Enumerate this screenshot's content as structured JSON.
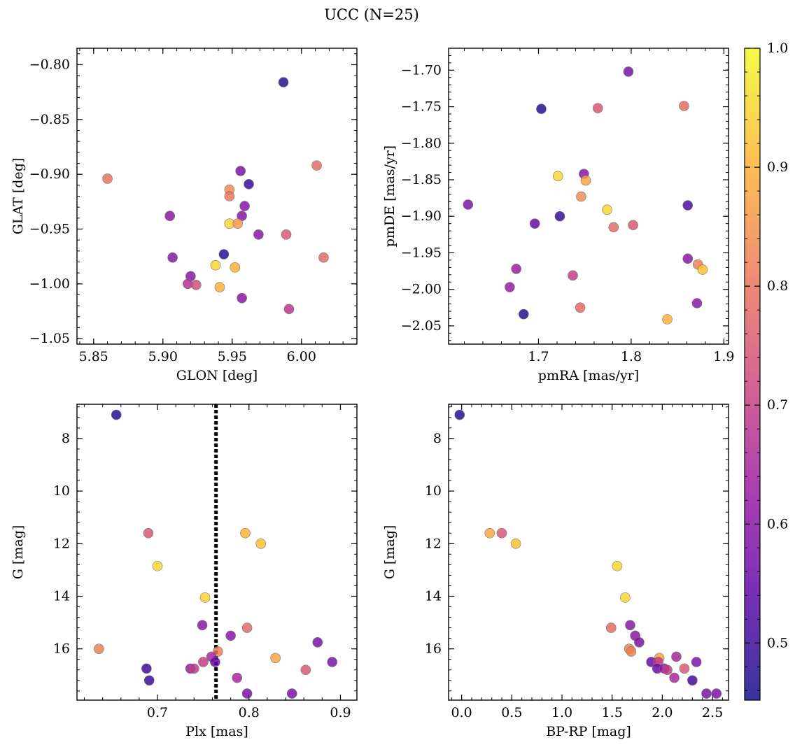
{
  "figure_title": "UCC (N=25)",
  "colormap_stops": [
    "#0d0887",
    "#5c01a6",
    "#9c179e",
    "#cc4778",
    "#ed7953",
    "#fdb42f",
    "#f0f921"
  ],
  "chart_data": [
    {
      "type": "scatter",
      "xlabel": "GLON [deg]",
      "ylabel": "GLAT [deg]",
      "xlim": [
        5.838,
        6.04
      ],
      "ylim": [
        -1.055,
        -0.785
      ],
      "y_inverted": false,
      "xticks": [
        5.85,
        5.9,
        5.95,
        6.0
      ],
      "xtick_labels": [
        "5.85",
        "5.90",
        "5.95",
        "6.00"
      ],
      "yticks": [
        -0.8,
        -0.85,
        -0.9,
        -0.95,
        -1.0,
        -1.05
      ],
      "ytick_labels": [
        "−0.80",
        "−0.85",
        "−0.90",
        "−0.95",
        "−1.00",
        "−1.05"
      ],
      "points": [
        {
          "x": 5.987,
          "y": -0.816,
          "c": 0.47
        },
        {
          "x": 5.86,
          "y": -0.904,
          "c": 0.8
        },
        {
          "x": 6.011,
          "y": -0.892,
          "c": 0.78
        },
        {
          "x": 5.956,
          "y": -0.897,
          "c": 0.58
        },
        {
          "x": 5.962,
          "y": -0.909,
          "c": 0.49
        },
        {
          "x": 5.948,
          "y": -0.914,
          "c": 0.84
        },
        {
          "x": 5.948,
          "y": -0.92,
          "c": 0.8
        },
        {
          "x": 5.959,
          "y": -0.929,
          "c": 0.6
        },
        {
          "x": 5.957,
          "y": -0.938,
          "c": 0.6
        },
        {
          "x": 5.905,
          "y": -0.938,
          "c": 0.6
        },
        {
          "x": 5.948,
          "y": -0.945,
          "c": 0.95
        },
        {
          "x": 5.954,
          "y": -0.945,
          "c": 0.86
        },
        {
          "x": 5.969,
          "y": -0.955,
          "c": 0.6
        },
        {
          "x": 5.989,
          "y": -0.955,
          "c": 0.75
        },
        {
          "x": 5.907,
          "y": -0.976,
          "c": 0.6
        },
        {
          "x": 6.016,
          "y": -0.976,
          "c": 0.78
        },
        {
          "x": 5.944,
          "y": -0.973,
          "c": 0.48
        },
        {
          "x": 5.938,
          "y": -0.983,
          "c": 0.95
        },
        {
          "x": 5.952,
          "y": -0.985,
          "c": 0.9
        },
        {
          "x": 5.92,
          "y": -0.993,
          "c": 0.6
        },
        {
          "x": 5.918,
          "y": -1.0,
          "c": 0.67
        },
        {
          "x": 5.924,
          "y": -1.001,
          "c": 0.73
        },
        {
          "x": 5.941,
          "y": -1.003,
          "c": 0.9
        },
        {
          "x": 5.957,
          "y": -1.013,
          "c": 0.6
        },
        {
          "x": 5.991,
          "y": -1.023,
          "c": 0.68
        }
      ]
    },
    {
      "type": "scatter",
      "xlabel": "pmRA [mas/yr]",
      "ylabel": "pmDE [mas/yr]",
      "xlim": [
        1.603,
        1.905
      ],
      "ylim": [
        -2.075,
        -1.67
      ],
      "y_inverted": false,
      "xticks": [
        1.7,
        1.8,
        1.9
      ],
      "xtick_labels": [
        "1.7",
        "1.8",
        "1.9"
      ],
      "yticks": [
        -1.7,
        -1.75,
        -1.8,
        -1.85,
        -1.9,
        -1.95,
        -2.0,
        -2.05
      ],
      "ytick_labels": [
        "−1.70",
        "−1.75",
        "−1.80",
        "−1.85",
        "−1.90",
        "−1.95",
        "−2.00",
        "−2.05"
      ],
      "points": [
        {
          "x": 1.797,
          "y": -1.702,
          "c": 0.58
        },
        {
          "x": 1.703,
          "y": -1.753,
          "c": 0.47
        },
        {
          "x": 1.764,
          "y": -1.752,
          "c": 0.75
        },
        {
          "x": 1.857,
          "y": -1.749,
          "c": 0.78
        },
        {
          "x": 1.721,
          "y": -1.845,
          "c": 0.95
        },
        {
          "x": 1.749,
          "y": -1.842,
          "c": 0.6
        },
        {
          "x": 1.751,
          "y": -1.851,
          "c": 0.88
        },
        {
          "x": 1.624,
          "y": -1.884,
          "c": 0.58
        },
        {
          "x": 1.746,
          "y": -1.873,
          "c": 0.84
        },
        {
          "x": 1.861,
          "y": -1.885,
          "c": 0.52
        },
        {
          "x": 1.774,
          "y": -1.891,
          "c": 0.95
        },
        {
          "x": 1.723,
          "y": -1.9,
          "c": 0.49
        },
        {
          "x": 1.696,
          "y": -1.91,
          "c": 0.55
        },
        {
          "x": 1.781,
          "y": -1.915,
          "c": 0.78
        },
        {
          "x": 1.802,
          "y": -1.912,
          "c": 0.75
        },
        {
          "x": 1.861,
          "y": -1.958,
          "c": 0.6
        },
        {
          "x": 1.872,
          "y": -1.966,
          "c": 0.82
        },
        {
          "x": 1.877,
          "y": -1.973,
          "c": 0.92
        },
        {
          "x": 1.676,
          "y": -1.972,
          "c": 0.63
        },
        {
          "x": 1.737,
          "y": -1.981,
          "c": 0.7
        },
        {
          "x": 1.669,
          "y": -1.997,
          "c": 0.62
        },
        {
          "x": 1.871,
          "y": -2.019,
          "c": 0.6
        },
        {
          "x": 1.745,
          "y": -2.025,
          "c": 0.78
        },
        {
          "x": 1.684,
          "y": -2.034,
          "c": 0.48
        },
        {
          "x": 1.839,
          "y": -2.041,
          "c": 0.9
        }
      ]
    },
    {
      "type": "scatter",
      "xlabel": "Plx [mas]",
      "ylabel": "G [mag]",
      "xlim": [
        0.612,
        0.918
      ],
      "ylim": [
        17.95,
        6.7
      ],
      "y_inverted": true,
      "xticks": [
        0.7,
        0.8,
        0.9
      ],
      "xtick_labels": [
        "0.7",
        "0.8",
        "0.9"
      ],
      "yticks": [
        8,
        10,
        12,
        14,
        16
      ],
      "ytick_labels": [
        "8",
        "10",
        "12",
        "14",
        "16"
      ],
      "vline": {
        "x": 0.764,
        "style": "dotted",
        "color": "#000000"
      },
      "points": [
        {
          "x": 0.655,
          "y": 7.1,
          "c": 0.47
        },
        {
          "x": 0.69,
          "y": 11.6,
          "c": 0.75
        },
        {
          "x": 0.796,
          "y": 11.6,
          "c": 0.9
        },
        {
          "x": 0.813,
          "y": 12.0,
          "c": 0.92
        },
        {
          "x": 0.7,
          "y": 12.85,
          "c": 0.95
        },
        {
          "x": 0.752,
          "y": 14.05,
          "c": 0.95
        },
        {
          "x": 0.749,
          "y": 15.1,
          "c": 0.6
        },
        {
          "x": 0.78,
          "y": 15.5,
          "c": 0.6
        },
        {
          "x": 0.798,
          "y": 15.2,
          "c": 0.78
        },
        {
          "x": 0.875,
          "y": 15.75,
          "c": 0.58
        },
        {
          "x": 0.636,
          "y": 16.0,
          "c": 0.82
        },
        {
          "x": 0.766,
          "y": 16.1,
          "c": 0.82
        },
        {
          "x": 0.829,
          "y": 16.35,
          "c": 0.88
        },
        {
          "x": 0.759,
          "y": 16.3,
          "c": 0.65
        },
        {
          "x": 0.75,
          "y": 16.5,
          "c": 0.7
        },
        {
          "x": 0.763,
          "y": 16.5,
          "c": 0.55
        },
        {
          "x": 0.891,
          "y": 16.5,
          "c": 0.58
        },
        {
          "x": 0.688,
          "y": 16.75,
          "c": 0.5
        },
        {
          "x": 0.736,
          "y": 16.75,
          "c": 0.62
        },
        {
          "x": 0.74,
          "y": 16.75,
          "c": 0.7
        },
        {
          "x": 0.862,
          "y": 16.8,
          "c": 0.75
        },
        {
          "x": 0.787,
          "y": 17.1,
          "c": 0.65
        },
        {
          "x": 0.691,
          "y": 17.2,
          "c": 0.5
        },
        {
          "x": 0.798,
          "y": 17.7,
          "c": 0.58
        },
        {
          "x": 0.847,
          "y": 17.7,
          "c": 0.58
        }
      ]
    },
    {
      "type": "scatter",
      "xlabel": "BP-RP [mag]",
      "ylabel": "G [mag]",
      "xlim": [
        -0.13,
        2.66
      ],
      "ylim": [
        17.95,
        6.7
      ],
      "y_inverted": true,
      "xticks": [
        0.0,
        0.5,
        1.0,
        1.5,
        2.0,
        2.5
      ],
      "xtick_labels": [
        "0.0",
        "0.5",
        "1.0",
        "1.5",
        "2.0",
        "2.5"
      ],
      "yticks": [
        8,
        10,
        12,
        14,
        16
      ],
      "ytick_labels": [
        "8",
        "10",
        "12",
        "14",
        "16"
      ],
      "points": [
        {
          "x": -0.02,
          "y": 7.1,
          "c": 0.47
        },
        {
          "x": 0.28,
          "y": 11.6,
          "c": 0.88
        },
        {
          "x": 0.4,
          "y": 11.6,
          "c": 0.75
        },
        {
          "x": 0.54,
          "y": 12.0,
          "c": 0.92
        },
        {
          "x": 1.55,
          "y": 12.85,
          "c": 0.95
        },
        {
          "x": 1.63,
          "y": 14.05,
          "c": 0.95
        },
        {
          "x": 1.49,
          "y": 15.2,
          "c": 0.78
        },
        {
          "x": 1.68,
          "y": 15.1,
          "c": 0.6
        },
        {
          "x": 1.73,
          "y": 15.5,
          "c": 0.6
        },
        {
          "x": 1.77,
          "y": 15.75,
          "c": 0.58
        },
        {
          "x": 1.67,
          "y": 16.0,
          "c": 0.82
        },
        {
          "x": 1.69,
          "y": 16.1,
          "c": 0.82
        },
        {
          "x": 1.97,
          "y": 16.35,
          "c": 0.88
        },
        {
          "x": 2.14,
          "y": 16.3,
          "c": 0.65
        },
        {
          "x": 1.89,
          "y": 16.5,
          "c": 0.55
        },
        {
          "x": 1.96,
          "y": 16.5,
          "c": 0.7
        },
        {
          "x": 2.34,
          "y": 16.5,
          "c": 0.58
        },
        {
          "x": 1.95,
          "y": 16.75,
          "c": 0.55
        },
        {
          "x": 2.02,
          "y": 16.75,
          "c": 0.62
        },
        {
          "x": 2.05,
          "y": 16.8,
          "c": 0.7
        },
        {
          "x": 2.22,
          "y": 16.75,
          "c": 0.75
        },
        {
          "x": 2.12,
          "y": 17.1,
          "c": 0.65
        },
        {
          "x": 2.3,
          "y": 17.2,
          "c": 0.5
        },
        {
          "x": 2.44,
          "y": 17.7,
          "c": 0.58
        },
        {
          "x": 2.54,
          "y": 17.7,
          "c": 0.58
        }
      ]
    }
  ],
  "colorbar": {
    "vmin": 0.452,
    "vmax": 1.0,
    "ticks": [
      0.5,
      0.6,
      0.7,
      0.8,
      0.9,
      1.0
    ],
    "tick_labels": [
      "0.5",
      "0.6",
      "0.7",
      "0.8",
      "0.9",
      "1.0"
    ]
  }
}
